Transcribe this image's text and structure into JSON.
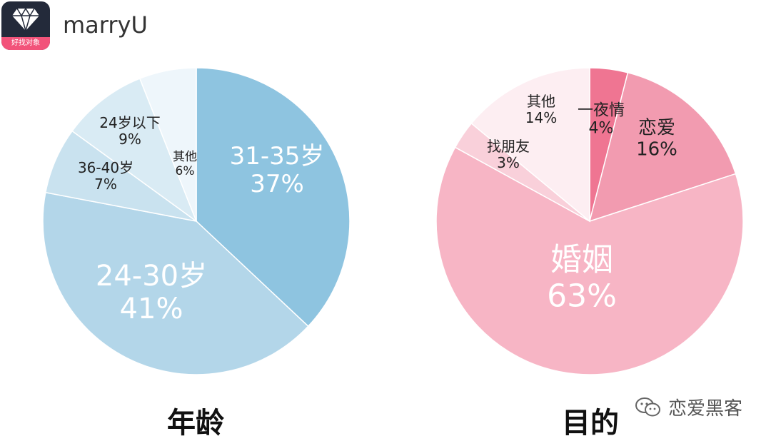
{
  "header": {
    "app_name": "marryU",
    "app_icon_slogan": "好找对象",
    "icon": "diamond-icon"
  },
  "watermark": {
    "text": "恋爱黑客",
    "icon": "wechat-icon"
  },
  "colors": {
    "age": [
      "#8ec4e0",
      "#b3d6e9",
      "#c9e2ef",
      "#d9ebf4",
      "#eef6fb"
    ],
    "purpose": [
      "#ef7592",
      "#f29bb0",
      "#f7b5c5",
      "#f9d0da",
      "#fdeef2"
    ]
  },
  "chart_data": [
    {
      "type": "pie",
      "title": "年龄",
      "slices": [
        {
          "label": "31-35岁",
          "value": 37,
          "value_label": "37%"
        },
        {
          "label": "24-30岁",
          "value": 41,
          "value_label": "41%"
        },
        {
          "label": "36-40岁",
          "value": 7,
          "value_label": "7%"
        },
        {
          "label": "24岁以下",
          "value": 9,
          "value_label": "9%"
        },
        {
          "label": "其他",
          "value": 6,
          "value_label": "6%"
        }
      ]
    },
    {
      "type": "pie",
      "title": "目的",
      "slices": [
        {
          "label": "一夜情",
          "value": 4,
          "value_label": "4%"
        },
        {
          "label": "恋爱",
          "value": 16,
          "value_label": "16%"
        },
        {
          "label": "婚姻",
          "value": 63,
          "value_label": "63%"
        },
        {
          "label": "找朋友",
          "value": 3,
          "value_label": "3%"
        },
        {
          "label": "其他",
          "value": 14,
          "value_label": "14%"
        }
      ]
    }
  ]
}
